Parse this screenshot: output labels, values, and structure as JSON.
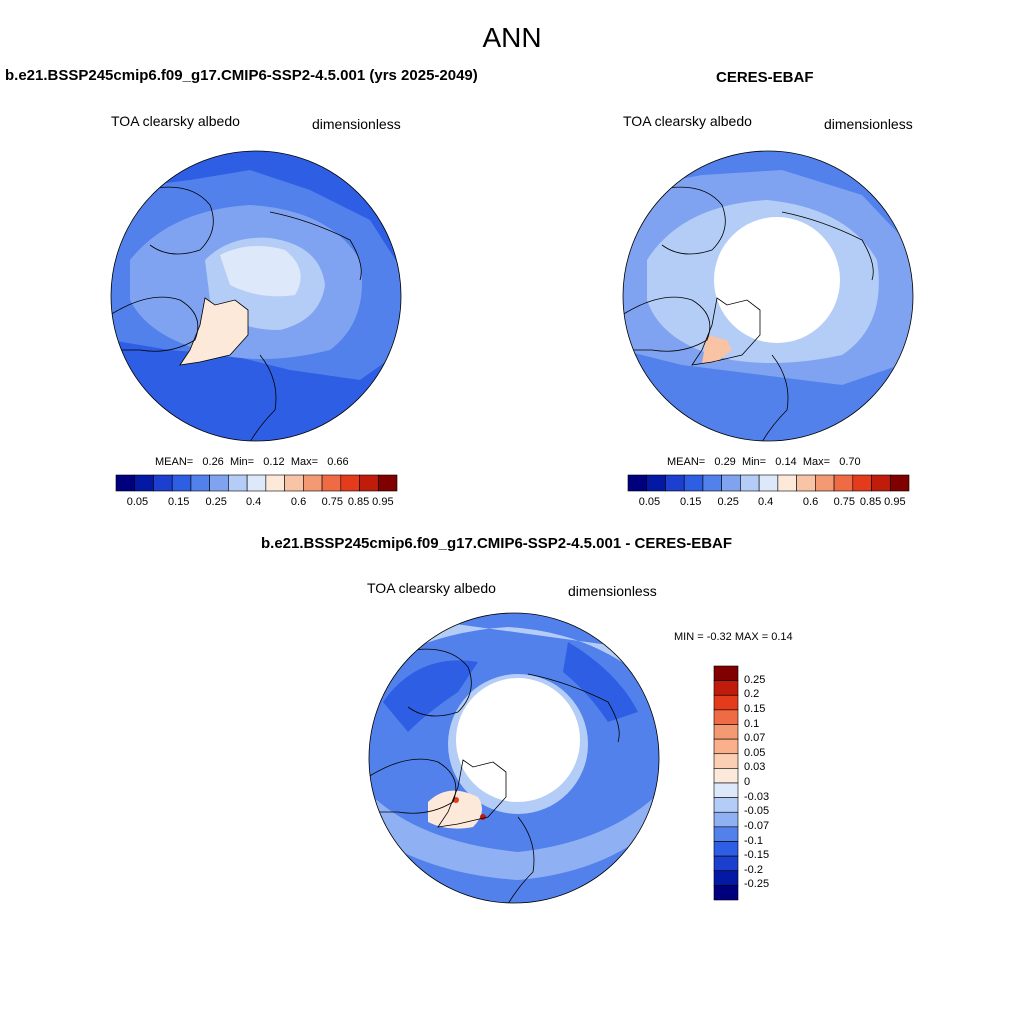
{
  "figure_title": "ANN",
  "colors": {
    "seq_scale": [
      "#00007f",
      "#0319a6",
      "#1d3fd0",
      "#2e5ee3",
      "#5281ec",
      "#7fa3f1",
      "#b4cdf7",
      "#dde9fb",
      "#fde9da",
      "#f9c3a5",
      "#f39a72",
      "#ef6b43",
      "#e33b1c",
      "#bf1c0b",
      "#800000"
    ],
    "diff_scale": [
      "#800000",
      "#bf1c0b",
      "#e33b1c",
      "#ef6b43",
      "#f39a72",
      "#f9b08b",
      "#fbcfb4",
      "#fde9da",
      "#dde9fb",
      "#b4cdf7",
      "#8fb1f3",
      "#5281ec",
      "#2e5ee3",
      "#1d3fd0",
      "#0319a6",
      "#00007f"
    ]
  },
  "panels": {
    "model": {
      "title": "b.e21.BSSP245cmip6.f09_g17.CMIP6-SSP2-4.5.001 (yrs 2025-2049)",
      "variable": "TOA clearsky albedo",
      "units": "dimensionless",
      "mean_label": "MEAN=",
      "mean": "0.26",
      "min_label": "Min=",
      "min": "0.12",
      "max_label": "Max=",
      "max": "0.66",
      "ticks": [
        "0.05",
        "0.15",
        "0.25",
        "0.4",
        "0.6",
        "0.75",
        "0.85",
        "0.95"
      ]
    },
    "obs": {
      "title": "CERES-EBAF",
      "variable": "TOA clearsky albedo",
      "units": "dimensionless",
      "mean_label": "MEAN=",
      "mean": "0.29",
      "min_label": "Min=",
      "min": "0.14",
      "max_label": "Max=",
      "max": "0.70",
      "ticks": [
        "0.05",
        "0.15",
        "0.25",
        "0.4",
        "0.6",
        "0.75",
        "0.85",
        "0.95"
      ]
    },
    "diff": {
      "title": "b.e21.BSSP245cmip6.f09_g17.CMIP6-SSP2-4.5.001 - CERES-EBAF",
      "variable": "TOA clearsky albedo",
      "units": "dimensionless",
      "minmax": "MIN =  -0.32 MAX =   0.14",
      "ticks": [
        "0.25",
        "0.2",
        "0.15",
        "0.1",
        "0.07",
        "0.05",
        "0.03",
        "0",
        "-0.03",
        "-0.05",
        "-0.07",
        "-0.1",
        "-0.15",
        "-0.2",
        "-0.25"
      ]
    }
  }
}
